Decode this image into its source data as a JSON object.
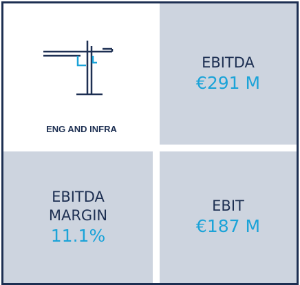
{
  "segment": {
    "name": "ENG AND INFRA"
  },
  "metrics": [
    {
      "label": "EBITDA",
      "value": "€291 M"
    },
    {
      "label": "EBITDA MARGIN",
      "value": "11.1%"
    },
    {
      "label": "EBIT",
      "value": "€187 M"
    }
  ]
}
